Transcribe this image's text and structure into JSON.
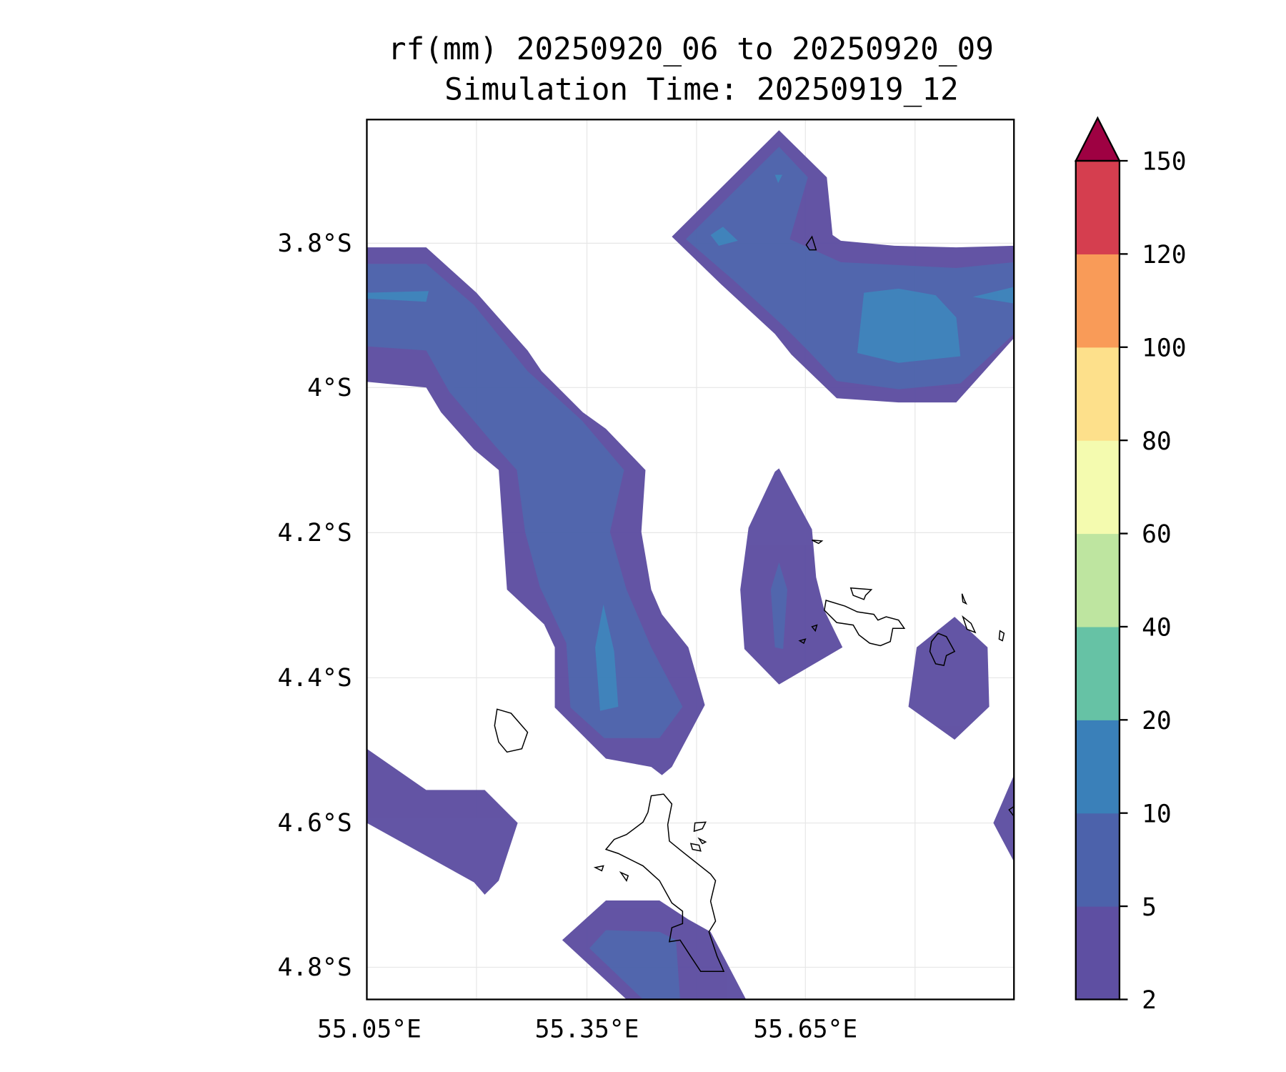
{
  "title": {
    "line1": "rf(mm) 20250920_06 to 20250920_09",
    "line2": "Simulation Time: 20250919_12"
  },
  "chart_data": {
    "type": "heatmap",
    "subtype": "filled-contour map",
    "title": "rf(mm) 20250920_06 to 20250920_09 / Simulation Time: 20250919_12",
    "variable": "rf(mm)",
    "x_ticks": [
      "55.05°E",
      "55.35°E",
      "55.65°E"
    ],
    "y_ticks": [
      "3.8°S",
      "4°S",
      "4.2°S",
      "4.4°S",
      "4.6°S",
      "4.8°S"
    ],
    "grid": true,
    "colorbar": {
      "levels": [
        2,
        5,
        10,
        20,
        40,
        60,
        80,
        100,
        120,
        150
      ],
      "labels": [
        "2",
        "5",
        "10",
        "20",
        "40",
        "60",
        "80",
        "100",
        "120",
        "150"
      ],
      "colors": [
        "#5e4fa2",
        "#4c62ab",
        "#3a80b9",
        "#66c2a5",
        "#bee5a0",
        "#f4fbaf",
        "#fde08b",
        "#f99b58",
        "#d53e4f"
      ],
      "extend_color": "#9e0142",
      "extend": "max",
      "placement": "right"
    },
    "observed_max_class": "10-20"
  }
}
